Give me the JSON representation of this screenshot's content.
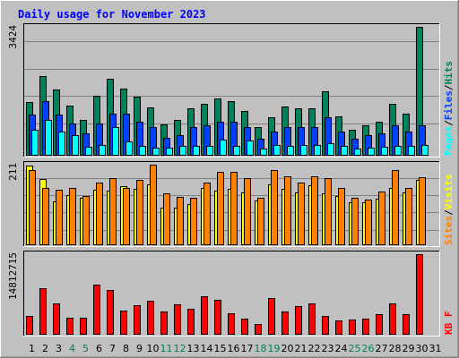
{
  "title": "Daily usage for November 2023",
  "colors": {
    "background": "#c0c0c0",
    "hits": "#00805c",
    "files": "#0040ff",
    "pages": "#00ffff",
    "visits": "#ffff00",
    "sites": "#ff8000",
    "kbytes": "#ff0000",
    "label_sep": "#000000",
    "weekday": "#000000",
    "weekend": "#00805c"
  },
  "chart_data": [
    {
      "type": "bar",
      "panel": "hits-files-pages",
      "max_label": "3424",
      "ylim": [
        0,
        3424
      ],
      "legend": [
        "Pages",
        "Files",
        "Hits"
      ],
      "x": [
        1,
        2,
        3,
        4,
        5,
        6,
        7,
        8,
        9,
        10,
        11,
        12,
        13,
        14,
        15,
        16,
        17,
        18,
        19,
        20,
        21,
        22,
        23,
        24,
        25,
        26,
        27,
        28,
        29,
        30,
        31
      ],
      "series": [
        {
          "name": "Hits",
          "values": [
            1420,
            2120,
            1750,
            1320,
            950,
            1600,
            2050,
            1780,
            1580,
            1290,
            830,
            950,
            1250,
            1380,
            1520,
            1450,
            1180,
            750,
            1020,
            1300,
            1250,
            1250,
            1720,
            1050,
            700,
            820,
            900,
            1380,
            1120,
            3424,
            0
          ]
        },
        {
          "name": "Files",
          "values": [
            1100,
            1450,
            1100,
            850,
            600,
            850,
            1120,
            1120,
            900,
            750,
            480,
            550,
            750,
            800,
            900,
            900,
            750,
            450,
            650,
            750,
            750,
            750,
            1020,
            650,
            450,
            550,
            600,
            800,
            650,
            800,
            0
          ]
        },
        {
          "name": "Pages",
          "values": [
            680,
            950,
            650,
            550,
            230,
            280,
            750,
            380,
            260,
            220,
            220,
            250,
            250,
            250,
            430,
            250,
            400,
            200,
            280,
            260,
            280,
            280,
            330,
            260,
            200,
            220,
            240,
            260,
            250,
            290,
            0
          ]
        }
      ]
    },
    {
      "type": "bar",
      "panel": "visits-sites",
      "max_label": "211",
      "ylim": [
        0,
        211
      ],
      "legend": [
        "Sites",
        "Visits"
      ],
      "x": [
        1,
        2,
        3,
        4,
        5,
        6,
        7,
        8,
        9,
        10,
        11,
        12,
        13,
        14,
        15,
        16,
        17,
        18,
        19,
        20,
        21,
        22,
        23,
        24,
        25,
        26,
        27,
        28,
        29,
        30,
        31
      ],
      "series": [
        {
          "name": "Visits",
          "values": [
            208,
            174,
            114,
            132,
            124,
            146,
            144,
            154,
            148,
            160,
            98,
            98,
            108,
            150,
            144,
            148,
            138,
            118,
            160,
            148,
            138,
            157,
            135,
            128,
            112,
            112,
            122,
            150,
            138,
            172,
            0
          ]
        },
        {
          "name": "Sites",
          "values": [
            196,
            150,
            146,
            150,
            130,
            164,
            176,
            150,
            172,
            210,
            136,
            126,
            124,
            164,
            192,
            192,
            176,
            124,
            196,
            180,
            164,
            180,
            176,
            150,
            124,
            120,
            140,
            196,
            150,
            178,
            0
          ]
        }
      ]
    },
    {
      "type": "bar",
      "panel": "kbytes",
      "max_label": "14812715",
      "ylim": [
        0,
        14812715
      ],
      "legend": [
        "KB F"
      ],
      "x": [
        1,
        2,
        3,
        4,
        5,
        6,
        7,
        8,
        9,
        10,
        11,
        12,
        13,
        14,
        15,
        16,
        17,
        18,
        19,
        20,
        21,
        22,
        23,
        24,
        25,
        26,
        27,
        28,
        29,
        30,
        31
      ],
      "series": [
        {
          "name": "KB F",
          "values": [
            3500000,
            8600000,
            5700000,
            3100000,
            3200000,
            9200000,
            8300000,
            4500000,
            5500000,
            6200000,
            4200000,
            5600000,
            4800000,
            7100000,
            6500000,
            4000000,
            3000000,
            2000000,
            6800000,
            4200000,
            5200000,
            5700000,
            3400000,
            2600000,
            2800000,
            3000000,
            3800000,
            5700000,
            3800000,
            14812715,
            0
          ]
        }
      ]
    }
  ],
  "days": [
    {
      "label": "1",
      "weekend": false
    },
    {
      "label": "2",
      "weekend": false
    },
    {
      "label": "3",
      "weekend": false
    },
    {
      "label": "4",
      "weekend": true
    },
    {
      "label": "5",
      "weekend": true
    },
    {
      "label": "6",
      "weekend": false
    },
    {
      "label": "7",
      "weekend": false
    },
    {
      "label": "8",
      "weekend": false
    },
    {
      "label": "9",
      "weekend": false
    },
    {
      "label": "10",
      "weekend": false
    },
    {
      "label": "11",
      "weekend": true
    },
    {
      "label": "12",
      "weekend": true
    },
    {
      "label": "13",
      "weekend": false
    },
    {
      "label": "14",
      "weekend": false
    },
    {
      "label": "15",
      "weekend": false
    },
    {
      "label": "16",
      "weekend": false
    },
    {
      "label": "17",
      "weekend": false
    },
    {
      "label": "18",
      "weekend": true
    },
    {
      "label": "19",
      "weekend": true
    },
    {
      "label": "20",
      "weekend": false
    },
    {
      "label": "21",
      "weekend": false
    },
    {
      "label": "22",
      "weekend": false
    },
    {
      "label": "23",
      "weekend": false
    },
    {
      "label": "24",
      "weekend": false
    },
    {
      "label": "25",
      "weekend": true
    },
    {
      "label": "26",
      "weekend": true
    },
    {
      "label": "27",
      "weekend": false
    },
    {
      "label": "28",
      "weekend": false
    },
    {
      "label": "29",
      "weekend": false
    },
    {
      "label": "30",
      "weekend": false
    },
    {
      "label": "31",
      "weekend": false
    }
  ]
}
